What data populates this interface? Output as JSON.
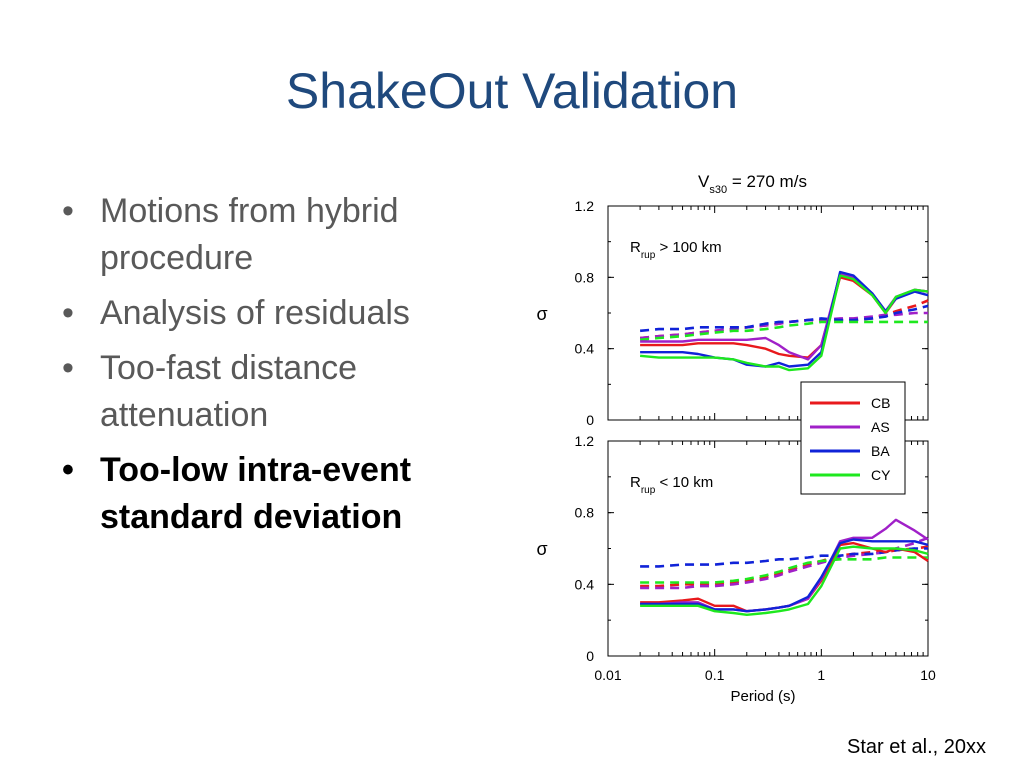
{
  "slide": {
    "title": "ShakeOut Validation",
    "bullets": [
      {
        "text": "Motions from hybrid procedure",
        "bold": false
      },
      {
        "text": "Analysis of residuals",
        "bold": false
      },
      {
        "text": "Too-fast distance attenuation",
        "bold": false
      },
      {
        "text": "Too-low intra-event standard deviation",
        "bold": true
      }
    ],
    "bullet_symbol": "•",
    "citation": "Star et al., 20xx"
  },
  "chart_data": {
    "type": "line",
    "x_scale": "log",
    "title_main": "V",
    "title_sub": "s30",
    "title_rest": " = 270 m/s",
    "xlabel": "Period (s)",
    "ylabel": "σ",
    "xlim": [
      0.01,
      10
    ],
    "xticks": [
      {
        "value": 0.01,
        "label": "0.01"
      },
      {
        "value": 0.1,
        "label": "0.1"
      },
      {
        "value": 1,
        "label": "1"
      },
      {
        "value": 10,
        "label": "10"
      }
    ],
    "ylim": [
      0,
      1.2
    ],
    "yticks": [
      {
        "value": 0,
        "label": "0"
      },
      {
        "value": 0.4,
        "label": "0.4"
      },
      {
        "value": 0.8,
        "label": "0.8"
      },
      {
        "value": 1.2,
        "label": "1.2"
      }
    ],
    "legend": {
      "placement": "right-between-panels",
      "entries": [
        {
          "name": "CB",
          "color": "#e8191c"
        },
        {
          "name": "AS",
          "color": "#a020c8"
        },
        {
          "name": "BA",
          "color": "#1023d8"
        },
        {
          "name": "CY",
          "color": "#1ee81e"
        }
      ]
    },
    "panels": [
      {
        "label_main": "R",
        "label_sub": "rup",
        "label_rest": " > 100 km",
        "periods": [
          0.02,
          0.03,
          0.05,
          0.07,
          0.1,
          0.15,
          0.2,
          0.3,
          0.4,
          0.5,
          0.75,
          1,
          1.5,
          2,
          3,
          4,
          5,
          7.5,
          10
        ],
        "series": [
          {
            "name": "CB",
            "color": "#e8191c",
            "dash": false,
            "values": [
              0.42,
              0.42,
              0.42,
              0.43,
              0.43,
              0.43,
              0.42,
              0.4,
              0.37,
              0.36,
              0.35,
              0.42,
              0.8,
              0.78,
              0.7,
              0.6,
              0.68,
              0.73,
              0.72
            ]
          },
          {
            "name": "AS",
            "color": "#a020c8",
            "dash": false,
            "values": [
              0.44,
              0.44,
              0.44,
              0.45,
              0.45,
              0.45,
              0.45,
              0.46,
              0.42,
              0.38,
              0.34,
              0.42,
              0.82,
              0.8,
              0.71,
              0.61,
              0.69,
              0.73,
              0.72
            ]
          },
          {
            "name": "BA",
            "color": "#1023d8",
            "dash": false,
            "values": [
              0.38,
              0.38,
              0.38,
              0.37,
              0.35,
              0.34,
              0.31,
              0.3,
              0.32,
              0.3,
              0.31,
              0.38,
              0.83,
              0.81,
              0.71,
              0.61,
              0.68,
              0.72,
              0.7
            ]
          },
          {
            "name": "CY",
            "color": "#1ee81e",
            "dash": false,
            "values": [
              0.36,
              0.35,
              0.35,
              0.35,
              0.35,
              0.34,
              0.32,
              0.3,
              0.3,
              0.28,
              0.29,
              0.36,
              0.81,
              0.79,
              0.7,
              0.6,
              0.69,
              0.73,
              0.72
            ]
          },
          {
            "name": "CB",
            "color": "#e8191c",
            "dash": true,
            "values": [
              0.46,
              0.47,
              0.48,
              0.49,
              0.5,
              0.51,
              0.52,
              0.53,
              0.54,
              0.55,
              0.56,
              0.56,
              0.56,
              0.56,
              0.57,
              0.59,
              0.61,
              0.64,
              0.67
            ]
          },
          {
            "name": "AS",
            "color": "#a020c8",
            "dash": true,
            "values": [
              0.46,
              0.47,
              0.48,
              0.49,
              0.5,
              0.51,
              0.52,
              0.53,
              0.54,
              0.55,
              0.56,
              0.56,
              0.57,
              0.57,
              0.58,
              0.59,
              0.59,
              0.6,
              0.6
            ]
          },
          {
            "name": "BA",
            "color": "#1023d8",
            "dash": true,
            "values": [
              0.5,
              0.51,
              0.51,
              0.52,
              0.52,
              0.52,
              0.52,
              0.54,
              0.55,
              0.55,
              0.56,
              0.57,
              0.56,
              0.56,
              0.57,
              0.58,
              0.6,
              0.62,
              0.64
            ]
          },
          {
            "name": "CY",
            "color": "#1ee81e",
            "dash": true,
            "values": [
              0.45,
              0.46,
              0.47,
              0.48,
              0.49,
              0.5,
              0.5,
              0.51,
              0.52,
              0.53,
              0.54,
              0.55,
              0.55,
              0.55,
              0.55,
              0.55,
              0.55,
              0.55,
              0.55
            ]
          }
        ]
      },
      {
        "label_main": "R",
        "label_sub": "rup",
        "label_rest": " < 10 km",
        "periods": [
          0.02,
          0.03,
          0.05,
          0.07,
          0.1,
          0.15,
          0.2,
          0.3,
          0.4,
          0.5,
          0.75,
          1,
          1.5,
          2,
          3,
          4,
          5,
          7.5,
          10
        ],
        "series": [
          {
            "name": "CB",
            "color": "#e8191c",
            "dash": false,
            "values": [
              0.3,
              0.3,
              0.31,
              0.32,
              0.28,
              0.28,
              0.25,
              0.26,
              0.27,
              0.28,
              0.32,
              0.42,
              0.62,
              0.63,
              0.6,
              0.58,
              0.6,
              0.58,
              0.53
            ]
          },
          {
            "name": "AS",
            "color": "#a020c8",
            "dash": false,
            "values": [
              0.29,
              0.29,
              0.3,
              0.3,
              0.26,
              0.26,
              0.25,
              0.26,
              0.27,
              0.28,
              0.32,
              0.43,
              0.64,
              0.66,
              0.66,
              0.71,
              0.76,
              0.7,
              0.65
            ]
          },
          {
            "name": "BA",
            "color": "#1023d8",
            "dash": false,
            "values": [
              0.29,
              0.29,
              0.29,
              0.29,
              0.26,
              0.26,
              0.25,
              0.26,
              0.27,
              0.28,
              0.33,
              0.44,
              0.63,
              0.65,
              0.64,
              0.64,
              0.64,
              0.64,
              0.62
            ]
          },
          {
            "name": "CY",
            "color": "#1ee81e",
            "dash": false,
            "values": [
              0.28,
              0.28,
              0.28,
              0.28,
              0.25,
              0.24,
              0.23,
              0.24,
              0.25,
              0.26,
              0.29,
              0.39,
              0.6,
              0.61,
              0.6,
              0.6,
              0.6,
              0.59,
              0.57
            ]
          },
          {
            "name": "CB",
            "color": "#e8191c",
            "dash": true,
            "values": [
              0.39,
              0.39,
              0.4,
              0.4,
              0.4,
              0.41,
              0.42,
              0.44,
              0.46,
              0.48,
              0.51,
              0.53,
              0.56,
              0.57,
              0.58,
              0.58,
              0.59,
              0.6,
              0.61
            ]
          },
          {
            "name": "AS",
            "color": "#a020c8",
            "dash": true,
            "values": [
              0.38,
              0.38,
              0.38,
              0.39,
              0.39,
              0.4,
              0.41,
              0.43,
              0.45,
              0.47,
              0.5,
              0.52,
              0.55,
              0.56,
              0.57,
              0.58,
              0.6,
              0.63,
              0.66
            ]
          },
          {
            "name": "BA",
            "color": "#1023d8",
            "dash": true,
            "values": [
              0.5,
              0.5,
              0.51,
              0.51,
              0.51,
              0.52,
              0.52,
              0.53,
              0.54,
              0.54,
              0.55,
              0.56,
              0.56,
              0.57,
              0.57,
              0.58,
              0.59,
              0.6,
              0.6
            ]
          },
          {
            "name": "CY",
            "color": "#1ee81e",
            "dash": true,
            "values": [
              0.41,
              0.41,
              0.41,
              0.41,
              0.41,
              0.42,
              0.43,
              0.45,
              0.47,
              0.49,
              0.52,
              0.53,
              0.54,
              0.54,
              0.54,
              0.55,
              0.55,
              0.55,
              0.55
            ]
          }
        ]
      }
    ]
  }
}
